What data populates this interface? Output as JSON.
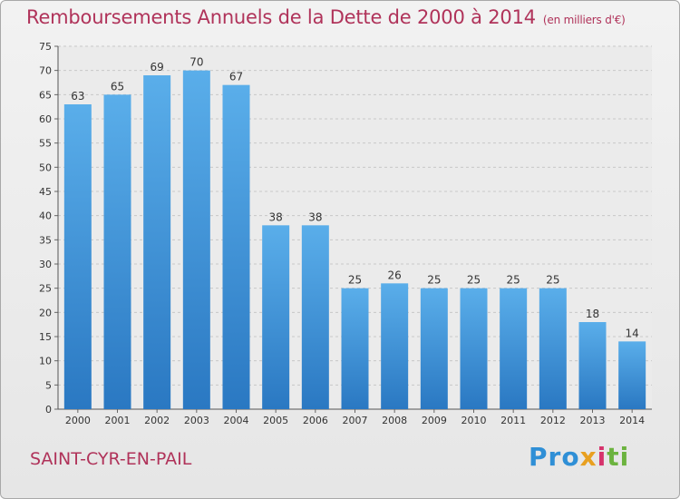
{
  "chart_data": {
    "type": "bar",
    "title": "Remboursements Annuels de la Dette de 2000 à 2014",
    "unit": "(en milliers d'€)",
    "categories": [
      "2000",
      "2001",
      "2002",
      "2003",
      "2004",
      "2005",
      "2006",
      "2007",
      "2008",
      "2009",
      "2010",
      "2011",
      "2012",
      "2013",
      "2014"
    ],
    "values": [
      63,
      65,
      69,
      70,
      67,
      38,
      38,
      25,
      26,
      25,
      25,
      25,
      25,
      18,
      14
    ],
    "ylim": [
      0,
      75
    ],
    "yticks": [
      0,
      5,
      10,
      15,
      20,
      25,
      30,
      35,
      40,
      45,
      50,
      55,
      60,
      65,
      70,
      75
    ],
    "grid": true,
    "bar_color": "#3a8fd8",
    "legend": "none"
  },
  "commune": "SAINT-CYR-EN-PAIL",
  "logo": {
    "p1": "Pro",
    "p2": "x",
    "p3": "i",
    "p4": "ti"
  }
}
